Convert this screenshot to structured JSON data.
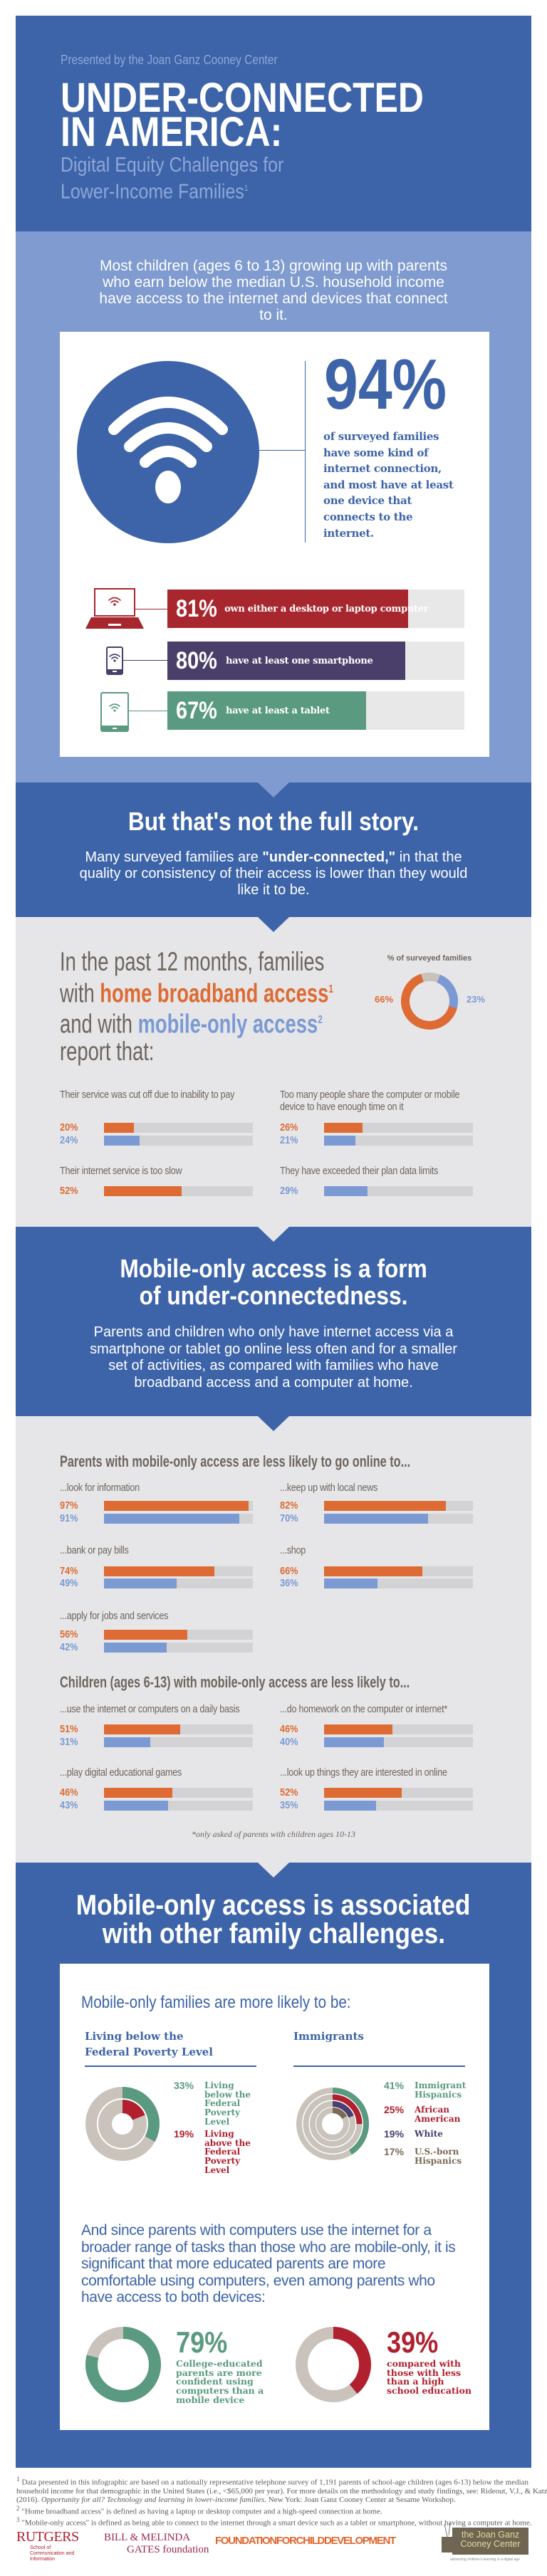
{
  "header": {
    "presenter": "Presented by the Joan Ganz Cooney Center",
    "title_line1": "UNDER-CONNECTED",
    "title_line2": "IN AMERICA:",
    "subtitle_line1": "Digital Equity Challenges for",
    "subtitle_line2": "Lower-Income Families",
    "subtitle_sup": "1"
  },
  "intro": {
    "text": "Most children (ages 6 to 13) growing up with parents who earn below the median U.S. household income have access to the internet and devices that connect to it."
  },
  "connection": {
    "icon": "wifi-icon",
    "big_stat": "94%",
    "description": "of surveyed families have some kind of internet connection, and most have at least one device that connects to the internet."
  },
  "devices": [
    {
      "icon": "laptop-icon",
      "pct": "81%",
      "label": "own either a desktop or laptop computer",
      "color": "#a8262e"
    },
    {
      "icon": "smartphone-icon",
      "pct": "80%",
      "label": "have at least one smartphone",
      "color": "#4a3f6b"
    },
    {
      "icon": "tablet-icon",
      "pct": "67%",
      "label": "have at least a tablet",
      "color": "#5a9a80"
    }
  ],
  "full_story": {
    "heading": "But that's not the full story.",
    "body_pre": "Many surveyed families are ",
    "body_bold": "\"under-connected,\"",
    "body_post": " in that the quality or consistency of their access is lower than they would like it to be."
  },
  "past12": {
    "line1": "In the past 12 months, families",
    "with": "with ",
    "broadband": "home broadband access",
    "sup1": "1",
    "and_with": "and with ",
    "mobile": "mobile-only access",
    "sup2": "2",
    "report": "report that:",
    "donut_caption": "% of surveyed families",
    "broadband_share": "66%",
    "mobile_share": "23%"
  },
  "colors": {
    "broadband": "#dd6b33",
    "mobile": "#7b9ad3",
    "track": "#d3d3d5",
    "dark_blue": "#3d64a9",
    "green": "#5a9a80",
    "red": "#b0202f",
    "purple": "#4a3f6e",
    "taupe": "#7a6a56",
    "ring_gray": "#c9c3bb"
  },
  "problems": [
    {
      "label": "Their service was cut off due to inability to pay",
      "broadband": "20%",
      "mobile": "24%"
    },
    {
      "label": "Too many people share the computer or mobile device to have enough time on it",
      "broadband": "26%",
      "mobile": "21%"
    },
    {
      "label": "Their internet service is too slow",
      "broadband": "52%"
    },
    {
      "label": "They have exceeded their plan data limits",
      "mobile": "29%"
    }
  ],
  "mobile_form": {
    "heading_line1": "Mobile-only access is a form",
    "heading_line2": "of under-connectedness.",
    "body": "Parents and children who only have internet access via a smartphone or tablet go online less often and for a smaller set of activities, as compared with families who have broadband access and a computer at home."
  },
  "parents": {
    "heading": "Parents with mobile-only access are less likely to go online to...",
    "items": [
      {
        "label": "...look for information",
        "broadband": "97%",
        "mobile": "91%"
      },
      {
        "label": "...keep up with local news",
        "broadband": "82%",
        "mobile": "70%"
      },
      {
        "label": "...bank or pay bills",
        "broadband": "74%",
        "mobile": "49%"
      },
      {
        "label": "...shop",
        "broadband": "66%",
        "mobile": "36%"
      },
      {
        "label": "...apply for jobs and services",
        "broadband": "56%",
        "mobile": "42%"
      }
    ]
  },
  "children": {
    "heading": "Children (ages 6-13) with mobile-only access are less likely to...",
    "items": [
      {
        "label": "...use the internet or computers on a daily basis",
        "broadband": "51%",
        "mobile": "31%"
      },
      {
        "label": "...do homework on the computer or internet*",
        "broadband": "46%",
        "mobile": "40%"
      },
      {
        "label": "...play digital educational games",
        "broadband": "46%",
        "mobile": "43%"
      },
      {
        "label": "...look up things they are interested in online",
        "broadband": "52%",
        "mobile": "35%"
      }
    ],
    "footnote": "*only asked of parents with children ages 10-13"
  },
  "challenges": {
    "heading_line1": "Mobile-only access is associated",
    "heading_line2": "with other family challenges.",
    "intro": "Mobile-only families are more likely to be:",
    "poverty": {
      "title_line1": "Living below the",
      "title_line2": "Federal Poverty Level",
      "items": [
        {
          "pct": "33%",
          "label": "Living below the Federal Poverty Level",
          "color": "#5a9a80"
        },
        {
          "pct": "19%",
          "label": "Living above the Federal Poverty Level",
          "color": "#b0202f"
        }
      ]
    },
    "immigrants": {
      "title": "Immigrants",
      "items": [
        {
          "pct": "41%",
          "label": "Immigrant Hispanics",
          "color": "#5a9a80"
        },
        {
          "pct": "25%",
          "label": "African American",
          "color": "#b0202f"
        },
        {
          "pct": "19%",
          "label": "White",
          "color": "#4a3f6e"
        },
        {
          "pct": "17%",
          "label": "U.S.-born Hispanics",
          "color": "#7a6a56"
        }
      ]
    },
    "paragraph": "And since parents with computers use the internet for a broader range of tasks than those who are mobile-only, it is significant that more educated parents are more comfortable using computers, even among parents who have access to both devices:",
    "education": [
      {
        "pct": "79%",
        "label": "College-educated parents are more confident using computers than a mobile device",
        "color": "#5a9a80"
      },
      {
        "pct": "39%",
        "label": "compared with those with less than a high school education",
        "color": "#b0202f"
      }
    ]
  },
  "footnotes": {
    "note1_a": "Data presented in this infographic are based on a nationally representative telephone survey of 1,191 parents of school-age children (ages 6-13) below the median",
    "note1_b": "household income for that demographic in the United States (i.e., <$65,000 per year). For more details on the methodology and study findings, see: Rideout, V.J., & Katz, V.S.",
    "note1_c": "(2016). ",
    "note1_title": "Opportunity for all? Technology and learning in lower-income families.",
    "note1_d": " New York: Joan Ganz Cooney Center at Sesame Workshop.",
    "note2": "\"Home broadband access\" is defined as having a laptop or desktop computer and a high-speed connection at home.",
    "note3": "\"Mobile-only access\" is defined as being able to connect to the internet through a smart device such as a tablet or smartphone, without having a computer at home.",
    "marks": [
      "1",
      "2",
      "3"
    ]
  },
  "logos": {
    "rutgers": "RUTGERS",
    "rutgers_sub": "School of Communication and Information",
    "gates_line1": "BILL & MELINDA",
    "gates_line2": "GATES foundation",
    "fcd": "FOUNDATIONFORCHILDDEVELOPMENT",
    "cooney_line1": "the Joan Ganz",
    "cooney_line2": "Cooney Center",
    "cooney_tagline": "advancing children's learning in a digital age"
  }
}
